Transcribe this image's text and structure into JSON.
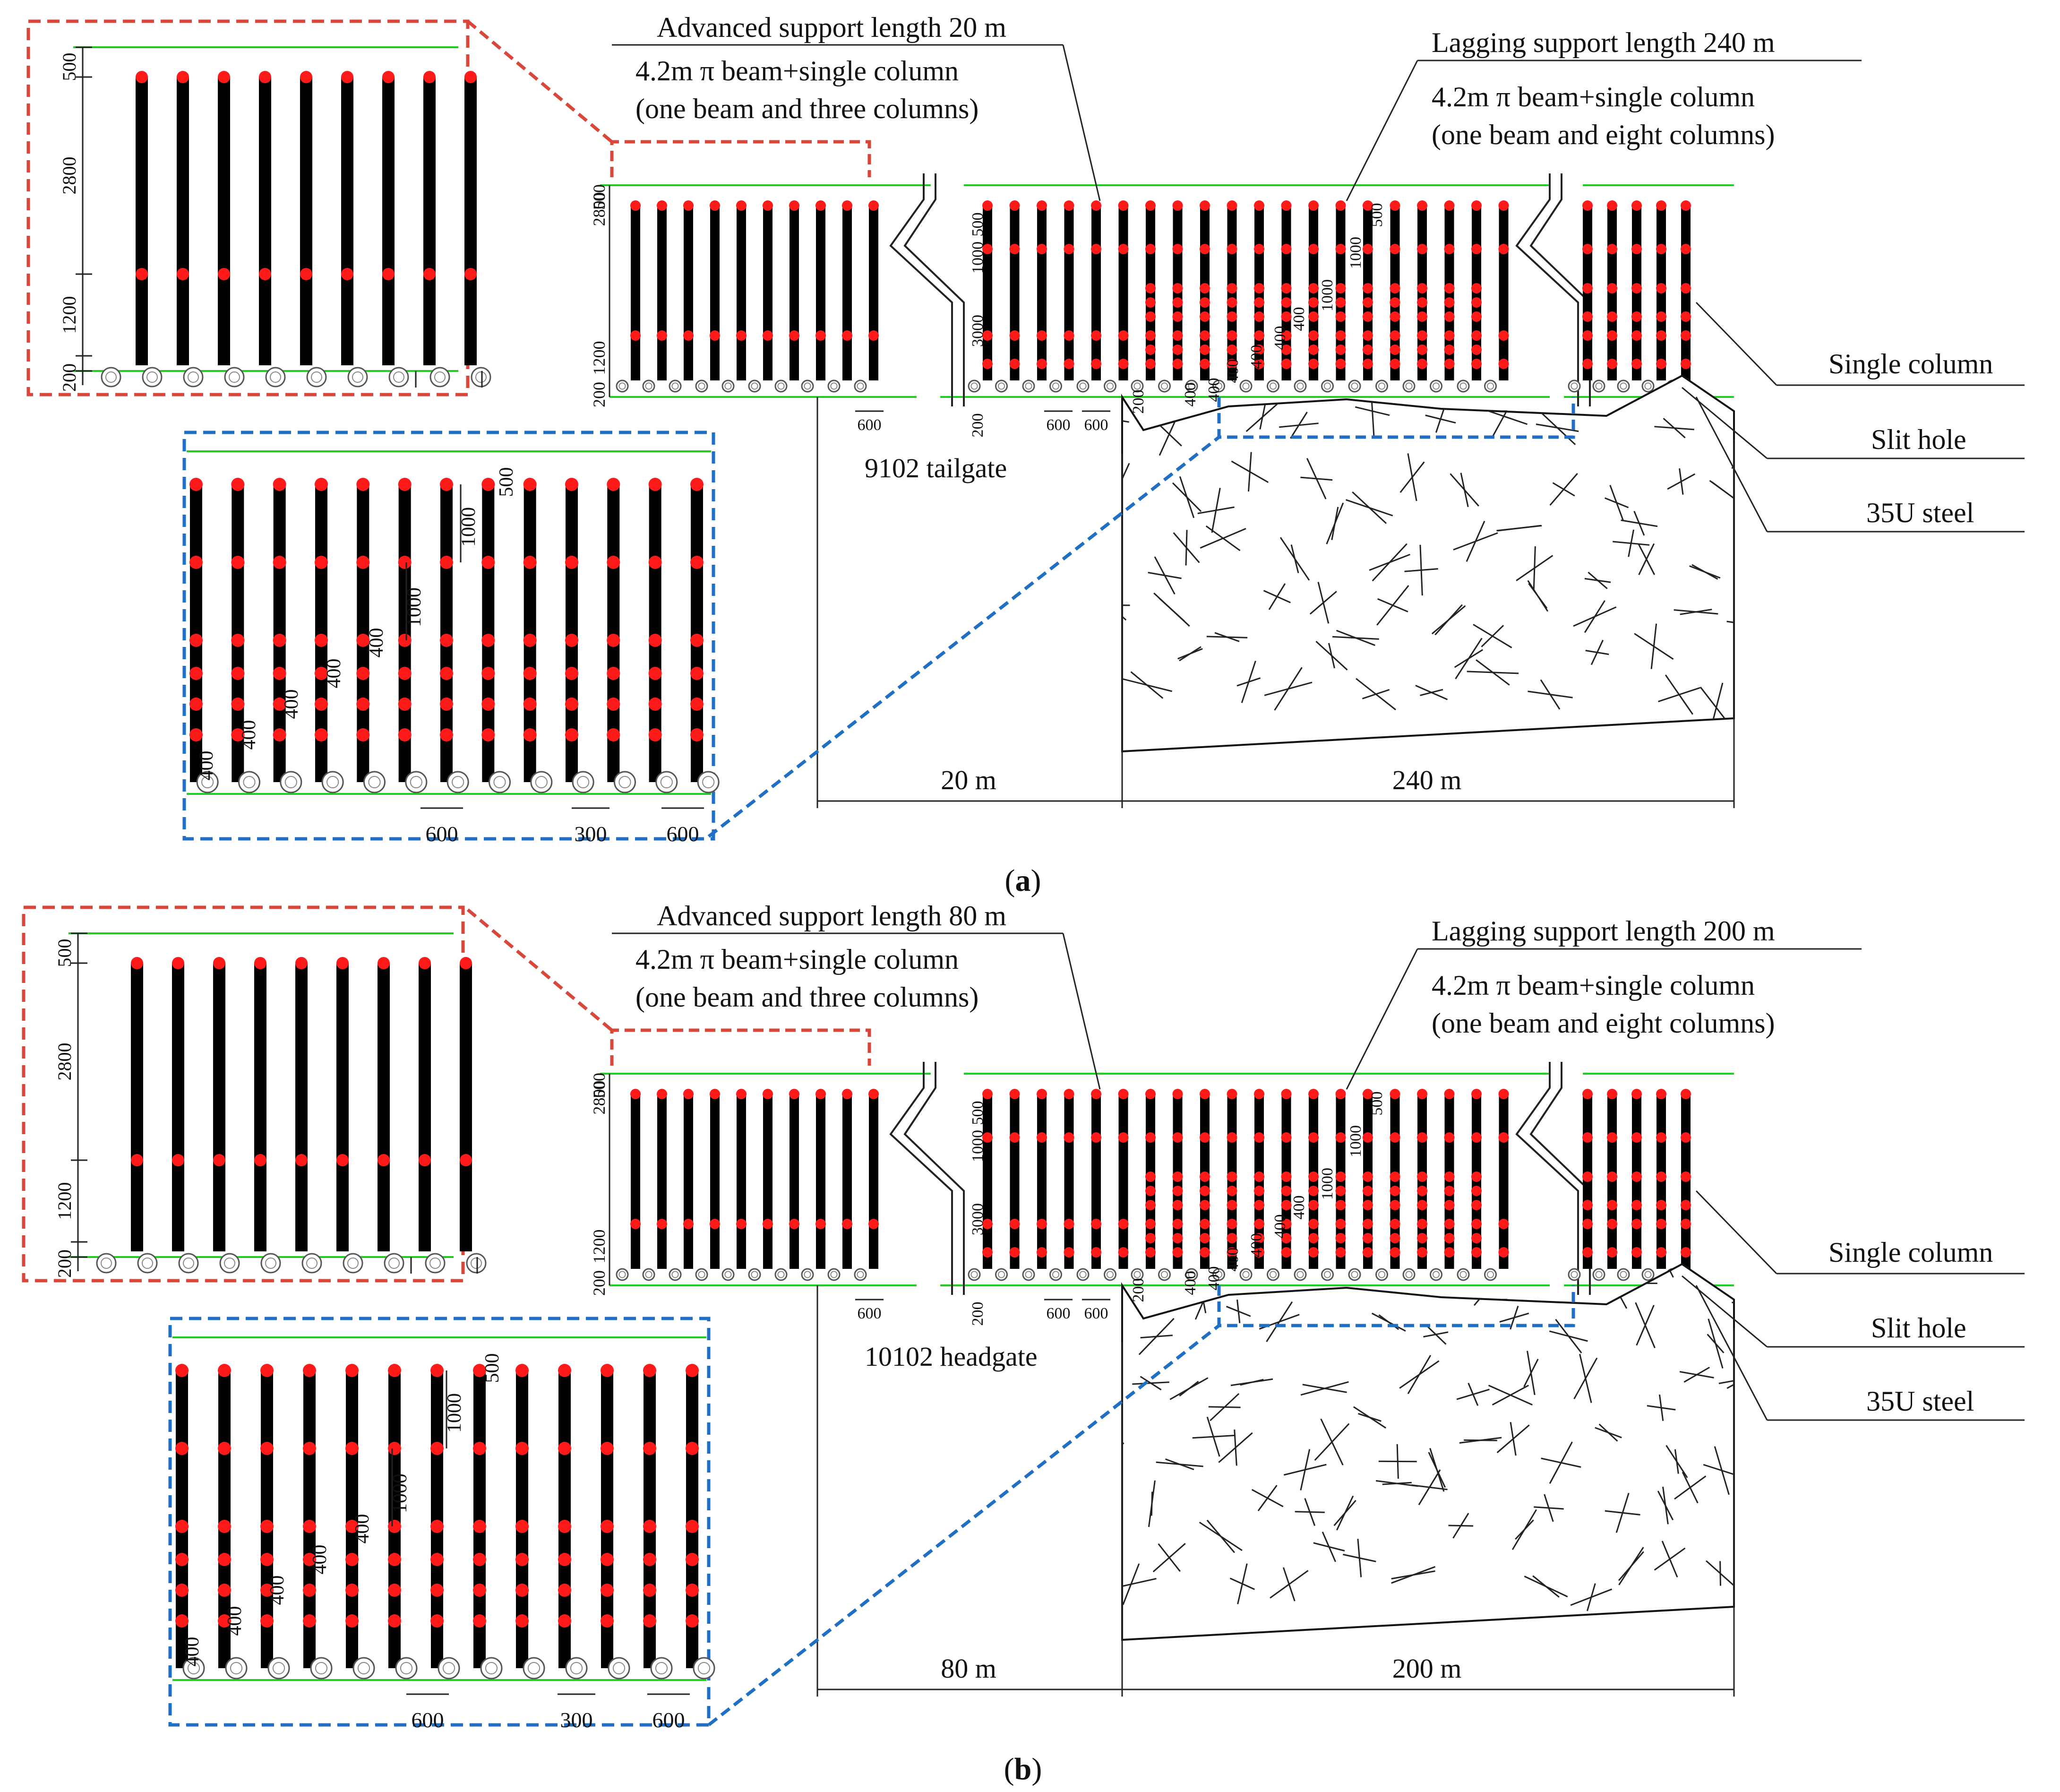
{
  "figure": "Support scheme diagrams for 9102 tailgate and 10102 headgate",
  "panels": [
    {
      "id": "a",
      "caption_open": "(",
      "caption_letter": "a",
      "caption_close": ")",
      "roadway": "9102 tailgate",
      "advanced_title": "Advanced support length 20 m",
      "advanced_line1": "4.2m π beam+single column",
      "advanced_line2": "(one beam and three columns)",
      "lagging_title": "Lagging support length 240 m",
      "lagging_line1": "4.2m π beam+single column",
      "lagging_line2": "(one beam and eight columns)",
      "label_single_column": "Single column",
      "label_slit_hole": "Slit hole",
      "label_steel": "35U steel",
      "span_left": "20 m",
      "span_right": "240 m"
    },
    {
      "id": "b",
      "caption_open": "(",
      "caption_letter": "b",
      "caption_close": ")",
      "roadway": "10102 headgate",
      "advanced_title": "Advanced support length 80 m",
      "advanced_line1": "4.2m π beam+single column",
      "advanced_line2": "(one beam and three columns)",
      "lagging_title": "Lagging support length 200 m",
      "lagging_line1": "4.2m π beam+single column",
      "lagging_line2": "(one beam and eight columns)",
      "label_single_column": "Single column",
      "label_slit_hole": "Slit hole",
      "label_steel": "35U steel",
      "span_left": "80 m",
      "span_right": "200 m"
    }
  ],
  "dims": {
    "d500": "500",
    "d2800": "2800",
    "d1200": "1200",
    "d200": "200",
    "d1000": "1000",
    "d3000": "3000",
    "d400": "400",
    "d600": "600",
    "d300": "300"
  },
  "colors": {
    "column": "#000000",
    "node": "#ff1a1a",
    "roof_line": "#22cc22",
    "detail_box_red": "#d9463a",
    "detail_box_blue": "#1f6fc5"
  }
}
